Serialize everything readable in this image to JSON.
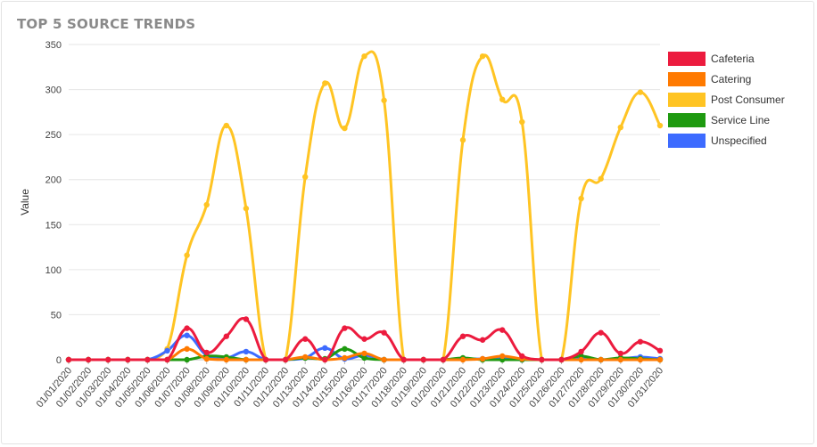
{
  "card": {
    "title": "TOP 5 SOURCE TRENDS"
  },
  "chart_data": {
    "type": "line",
    "title": "TOP 5 SOURCE TRENDS",
    "ylabel": "Value",
    "xlabel": "",
    "ylim": [
      0,
      350
    ],
    "yticks": [
      0,
      50,
      100,
      150,
      200,
      250,
      300,
      350
    ],
    "grid": true,
    "legend_position": "right",
    "categories": [
      "01/01/2020",
      "01/02/2020",
      "01/03/2020",
      "01/04/2020",
      "01/05/2020",
      "01/06/2020",
      "01/07/2020",
      "01/08/2020",
      "01/09/2020",
      "01/10/2020",
      "01/11/2020",
      "01/12/2020",
      "01/13/2020",
      "01/14/2020",
      "01/15/2020",
      "01/16/2020",
      "01/17/2020",
      "01/18/2020",
      "01/19/2020",
      "01/20/2020",
      "01/21/2020",
      "01/22/2020",
      "01/23/2020",
      "01/24/2020",
      "01/25/2020",
      "01/26/2020",
      "01/27/2020",
      "01/28/2020",
      "01/29/2020",
      "01/30/2020",
      "01/31/2020"
    ],
    "series": [
      {
        "name": "Post Consumer",
        "color": "#FFC423",
        "values": [
          0,
          0,
          0,
          0,
          0,
          12,
          116,
          172,
          260,
          168,
          0,
          0,
          203,
          307,
          257,
          337,
          288,
          0,
          0,
          0,
          244,
          337,
          289,
          264,
          0,
          0,
          179,
          201,
          258,
          297,
          260
        ]
      },
      {
        "name": "Unspecified",
        "color": "#3D6BFF",
        "values": [
          0,
          0,
          0,
          0,
          0,
          10,
          27,
          5,
          2,
          9,
          0,
          0,
          2,
          13,
          1,
          5,
          0,
          0,
          0,
          0,
          1,
          1,
          3,
          0,
          0,
          0,
          3,
          0,
          1,
          3,
          1
        ]
      },
      {
        "name": "Service Line",
        "color": "#1F9A10",
        "values": [
          0,
          0,
          0,
          0,
          0,
          0,
          0,
          4,
          3,
          0,
          0,
          0,
          2,
          1,
          12,
          2,
          0,
          0,
          0,
          0,
          2,
          0,
          0,
          0,
          0,
          0,
          4,
          0,
          2,
          1,
          0
        ]
      },
      {
        "name": "Catering",
        "color": "#FF7A00",
        "values": [
          0,
          0,
          0,
          0,
          0,
          0,
          12,
          1,
          0,
          0,
          0,
          0,
          3,
          0,
          2,
          7,
          0,
          0,
          0,
          0,
          0,
          1,
          4,
          1,
          0,
          0,
          0,
          0,
          0,
          0,
          0
        ]
      },
      {
        "name": "Cafeteria",
        "color": "#EC1B3E",
        "values": [
          0,
          0,
          0,
          0,
          0,
          0,
          35,
          8,
          26,
          45,
          0,
          0,
          23,
          0,
          35,
          23,
          30,
          0,
          0,
          0,
          26,
          22,
          33,
          4,
          0,
          0,
          9,
          30,
          7,
          20,
          10
        ]
      }
    ],
    "legend": [
      {
        "name": "Cafeteria",
        "color": "#EC1B3E"
      },
      {
        "name": "Catering",
        "color": "#FF7A00"
      },
      {
        "name": "Post Consumer",
        "color": "#FFC423"
      },
      {
        "name": "Service Line",
        "color": "#1F9A10"
      },
      {
        "name": "Unspecified",
        "color": "#3D6BFF"
      }
    ]
  }
}
